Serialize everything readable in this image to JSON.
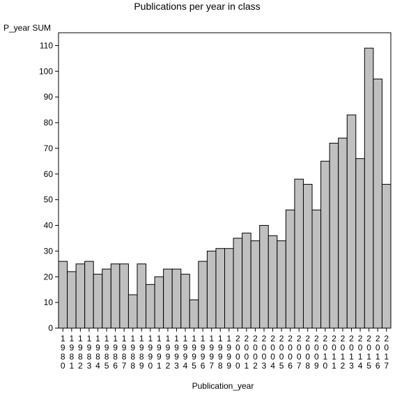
{
  "chart_data": {
    "type": "bar",
    "title": "Publications per year in class",
    "xlabel": "Publication_year",
    "ylabel": "P_year SUM",
    "ylim": [
      0,
      115
    ],
    "yticks": [
      0,
      10,
      20,
      30,
      40,
      50,
      60,
      70,
      80,
      90,
      100,
      110
    ],
    "grid": false,
    "bar_color": "#c0c0c0",
    "categories": [
      "1980",
      "1981",
      "1982",
      "1983",
      "1984",
      "1985",
      "1986",
      "1987",
      "1988",
      "1989",
      "1990",
      "1991",
      "1992",
      "1993",
      "1994",
      "1995",
      "1996",
      "1997",
      "1998",
      "1999",
      "2000",
      "2001",
      "2002",
      "2003",
      "2004",
      "2005",
      "2006",
      "2007",
      "2008",
      "2009",
      "2010",
      "2011",
      "2012",
      "2013",
      "2014",
      "2015",
      "2016",
      "2017"
    ],
    "values": [
      26,
      22,
      25,
      26,
      21,
      23,
      25,
      25,
      13,
      25,
      17,
      20,
      23,
      23,
      21,
      11,
      26,
      30,
      31,
      31,
      35,
      37,
      34,
      40,
      36,
      34,
      46,
      58,
      56,
      46,
      65,
      72,
      74,
      83,
      66,
      109,
      97,
      56
    ]
  }
}
